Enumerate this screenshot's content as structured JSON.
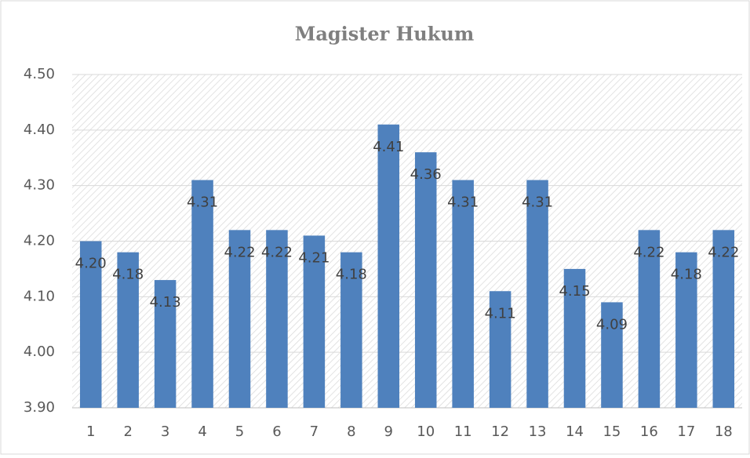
{
  "chart_data": {
    "type": "bar",
    "title": "Magister Hukum",
    "categories": [
      "1",
      "2",
      "3",
      "4",
      "5",
      "6",
      "7",
      "8",
      "9",
      "10",
      "11",
      "12",
      "13",
      "14",
      "15",
      "16",
      "17",
      "18"
    ],
    "values": [
      4.2,
      4.18,
      4.13,
      4.31,
      4.22,
      4.22,
      4.21,
      4.18,
      4.41,
      4.36,
      4.31,
      4.11,
      4.31,
      4.15,
      4.09,
      4.22,
      4.18,
      4.22
    ],
    "value_labels": [
      "4.20",
      "4.18",
      "4.13",
      "4.31",
      "4.22",
      "4.22",
      "4.21",
      "4.18",
      "4.41",
      "4.36",
      "4.31",
      "4.11",
      "4.31",
      "4.15",
      "4.09",
      "4.22",
      "4.18",
      "4.22"
    ],
    "color": "#4f81bd",
    "ylim": [
      3.9,
      4.5
    ],
    "yticks": [
      {
        "value": 3.9,
        "label": "3.90"
      },
      {
        "value": 4.0,
        "label": "4.00"
      },
      {
        "value": 4.1,
        "label": "4.10"
      },
      {
        "value": 4.2,
        "label": "4.20"
      },
      {
        "value": 4.3,
        "label": "4.30"
      },
      {
        "value": 4.4,
        "label": "4.40"
      },
      {
        "value": 4.5,
        "label": "4.50"
      }
    ],
    "grid": true
  }
}
